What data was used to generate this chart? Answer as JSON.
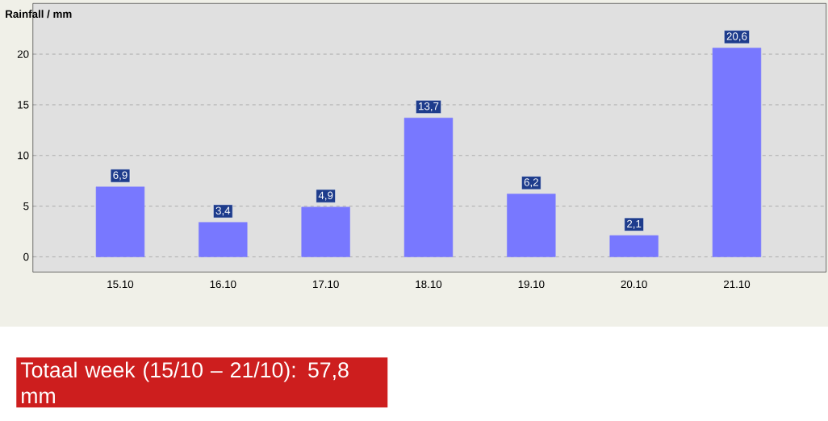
{
  "chart_data": {
    "type": "bar",
    "ylabel": "Rainfall / mm",
    "categories": [
      "15.10",
      "16.10",
      "17.10",
      "18.10",
      "19.10",
      "20.10",
      "21.10"
    ],
    "values": [
      6.9,
      3.4,
      4.9,
      13.7,
      6.2,
      2.1,
      20.6
    ],
    "value_labels": [
      "6,9",
      "3,4",
      "4,9",
      "13,7",
      "6,2",
      "2,1",
      "20,6"
    ],
    "color": "#7878ff",
    "ylim": [
      -1.5,
      25
    ],
    "yticks": [
      0,
      5,
      10,
      15,
      20
    ],
    "grid": "y",
    "annotations": [
      "Totaal week (15/10 – 21/10):  57,8 mm"
    ]
  }
}
